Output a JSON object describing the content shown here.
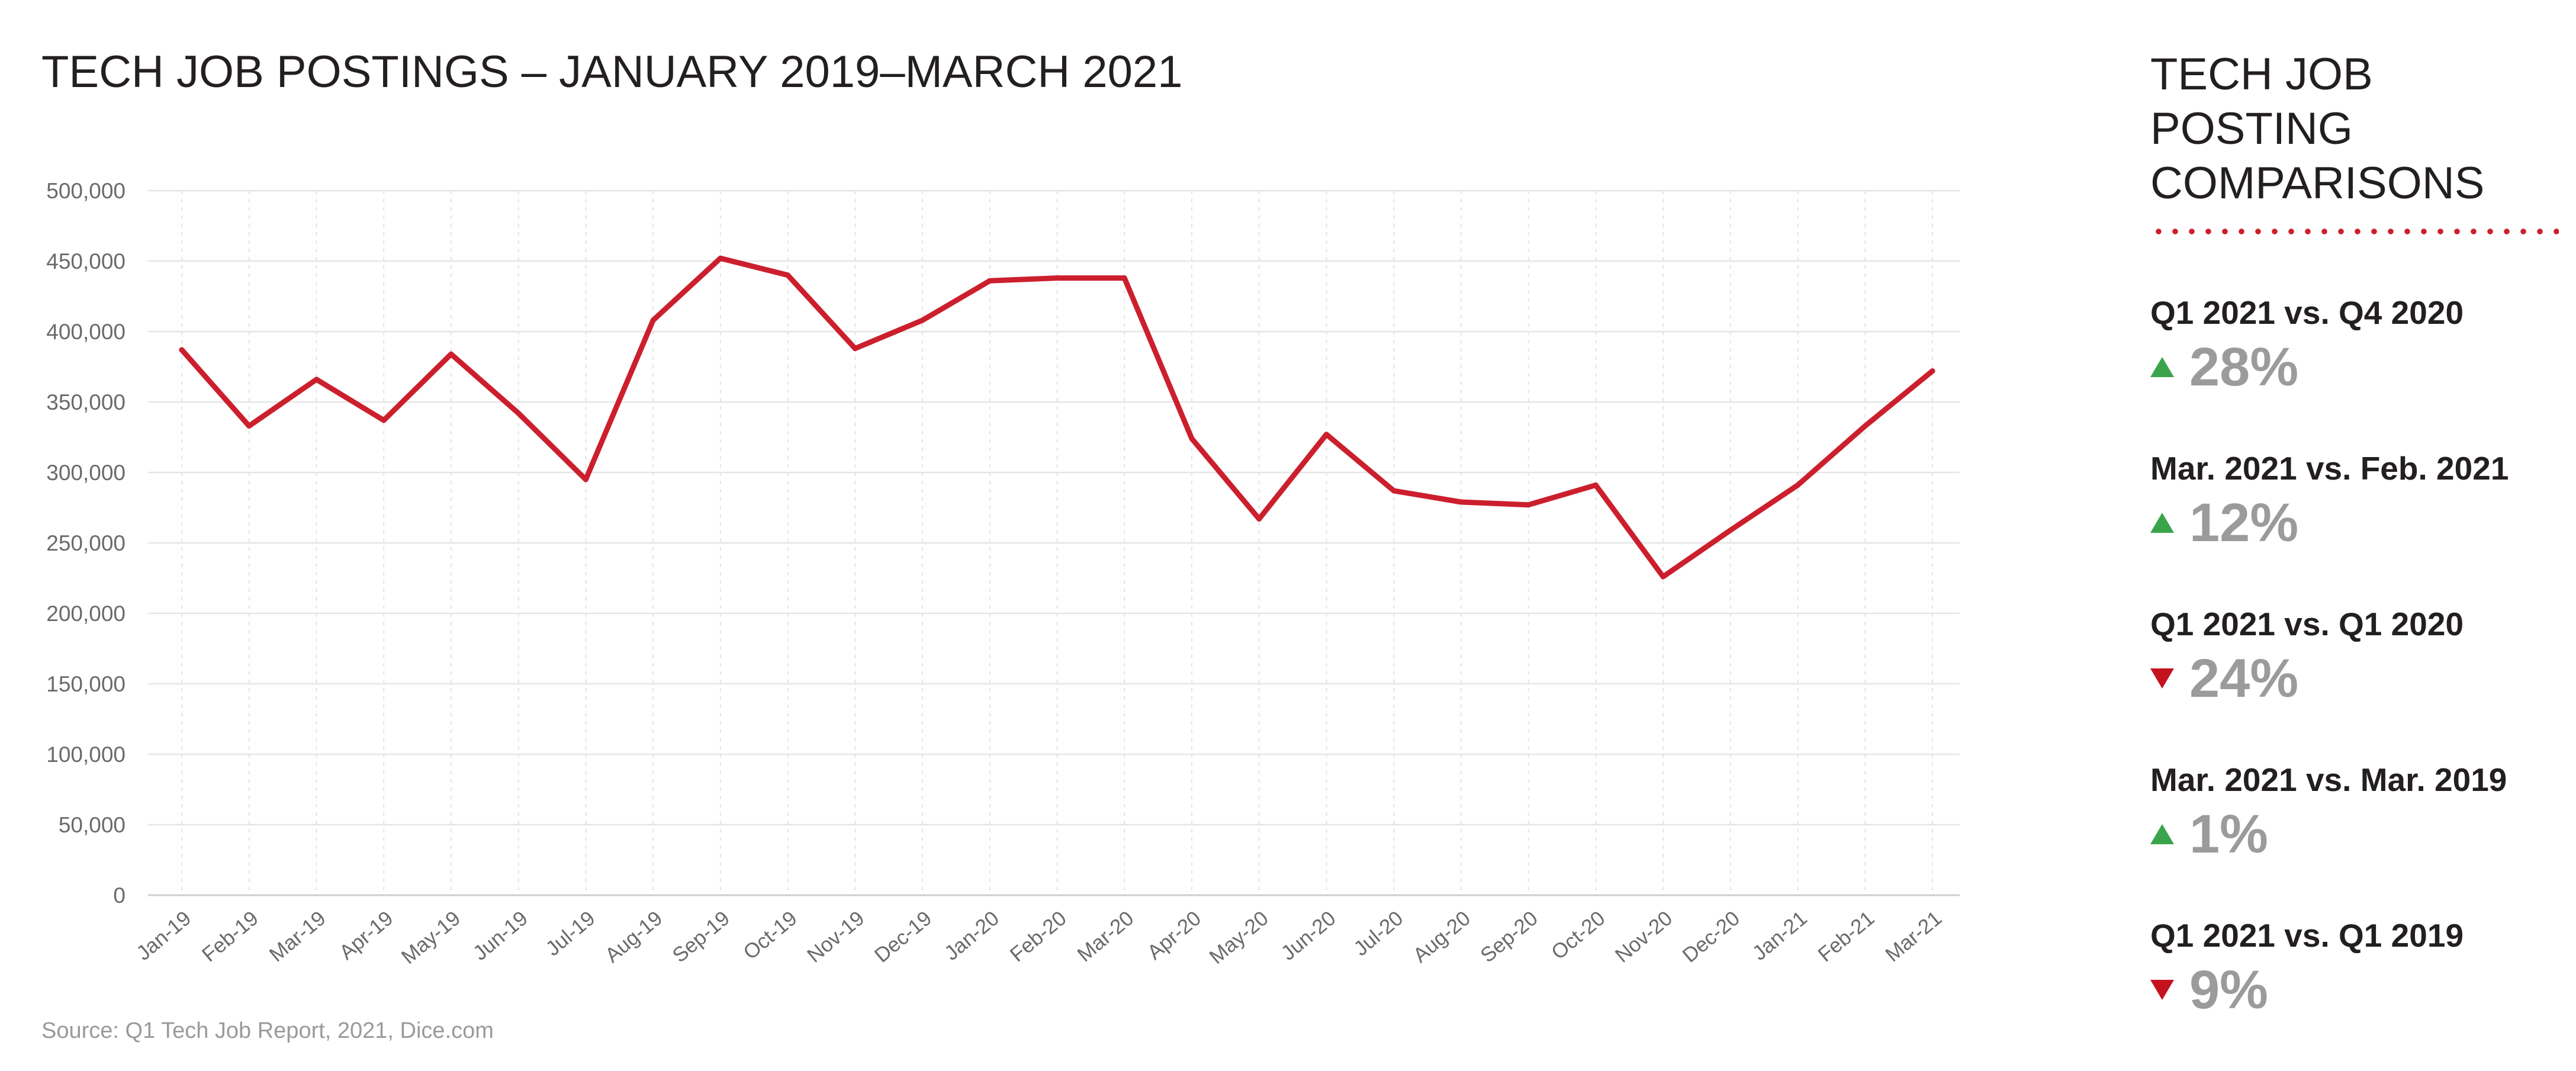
{
  "chart_data": {
    "type": "line",
    "title": "TECH JOB POSTINGS – JANUARY 2019–MARCH 2021",
    "categories": [
      "Jan-19",
      "Feb-19",
      "Mar-19",
      "Apr-19",
      "May-19",
      "Jun-19",
      "Jul-19",
      "Aug-19",
      "Sep-19",
      "Oct-19",
      "Nov-19",
      "Dec-19",
      "Jan-20",
      "Feb-20",
      "Mar-20",
      "Apr-20",
      "May-20",
      "Jun-20",
      "Jul-20",
      "Aug-20",
      "Sep-20",
      "Oct-20",
      "Nov-20",
      "Dec-20",
      "Jan-21",
      "Feb-21",
      "Mar-21"
    ],
    "series": [
      {
        "values": [
          387000,
          333000,
          366000,
          337000,
          384000,
          342000,
          295000,
          408000,
          452000,
          440000,
          388000,
          408000,
          436000,
          438000,
          438000,
          324000,
          267000,
          327000,
          287000,
          279000,
          277000,
          291000,
          226000,
          259000,
          291000,
          333000,
          372000
        ]
      }
    ],
    "ylim": [
      0,
      500000
    ],
    "yticks": [
      0,
      50000,
      100000,
      150000,
      200000,
      250000,
      300000,
      350000,
      400000,
      450000,
      500000
    ],
    "ytick_labels": [
      "0",
      "50,000",
      "100,000",
      "150,000",
      "200,000",
      "250,000",
      "300,000",
      "350,000",
      "400,000",
      "450,000",
      "500,000"
    ],
    "line_color": "#cc1f2d",
    "grid": true,
    "source": "Source: Q1 Tech Job Report, 2021, Dice.com"
  },
  "side_panel": {
    "title_line1": "TECH JOB POSTING",
    "title_line2": "COMPARISONS",
    "accent_color": "#cc1f2d",
    "comparisons": [
      {
        "label": "Q1 2021 vs. Q4 2020",
        "value": "28%",
        "direction": "up"
      },
      {
        "label": "Mar. 2021 vs. Feb. 2021",
        "value": "12%",
        "direction": "up"
      },
      {
        "label": "Q1 2021 vs. Q1 2020",
        "value": "24%",
        "direction": "down"
      },
      {
        "label": "Mar. 2021 vs. Mar. 2019",
        "value": "1%",
        "direction": "up"
      },
      {
        "label": "Q1 2021 vs. Q1 2019",
        "value": "9%",
        "direction": "down"
      }
    ],
    "colors": {
      "up": "#3aa44b",
      "down": "#c4121f"
    }
  }
}
